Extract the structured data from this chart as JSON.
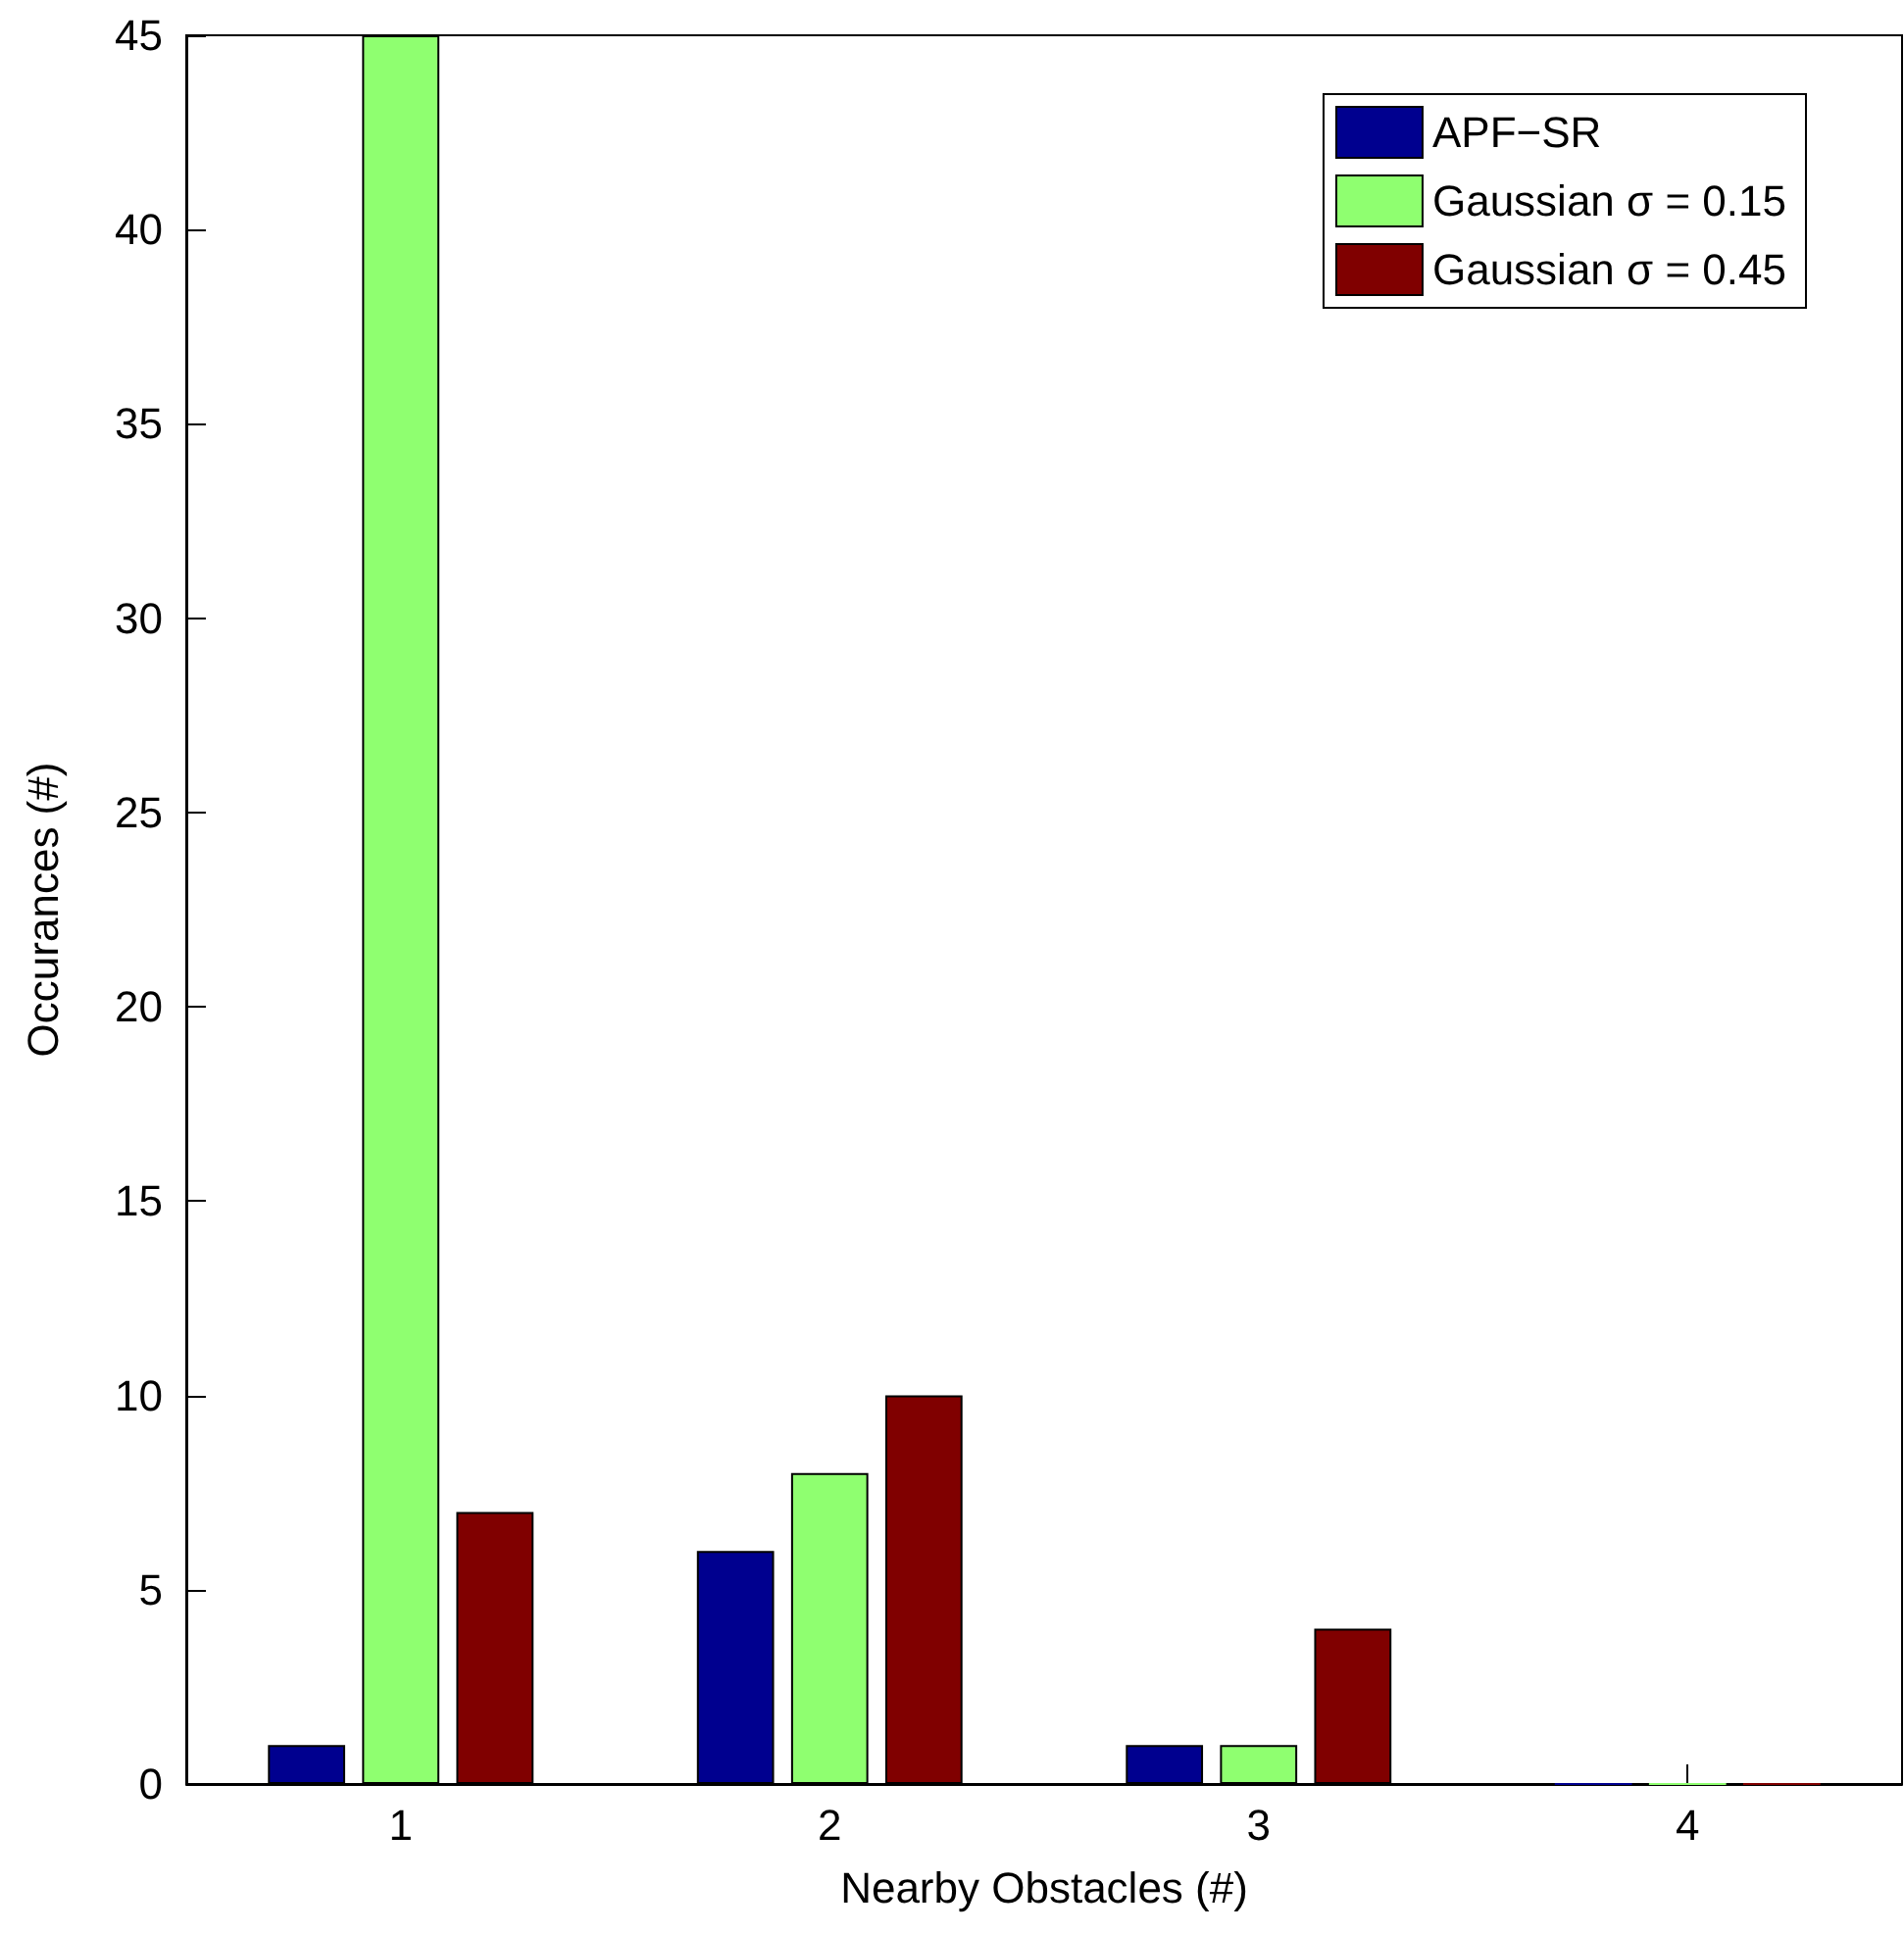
{
  "chart_data": {
    "type": "bar",
    "xlabel": "Nearby Obstacles (#)",
    "ylabel": "Occurances (#)",
    "categories": [
      "1",
      "2",
      "3",
      "4"
    ],
    "series": [
      {
        "name": "APF−SR",
        "color": "#00008f",
        "values": [
          1,
          6,
          1,
          0
        ]
      },
      {
        "name": "Gaussian σ = 0.15",
        "color": "#8fff70",
        "values": [
          45,
          8,
          1,
          0
        ]
      },
      {
        "name": "Gaussian σ = 0.45",
        "color": "#800000",
        "values": [
          7,
          10,
          4,
          0
        ]
      }
    ],
    "ylim": [
      0,
      45
    ],
    "yticks": [
      0,
      5,
      10,
      15,
      20,
      25,
      30,
      35,
      40,
      45
    ],
    "grid": false,
    "legend": "top right"
  }
}
